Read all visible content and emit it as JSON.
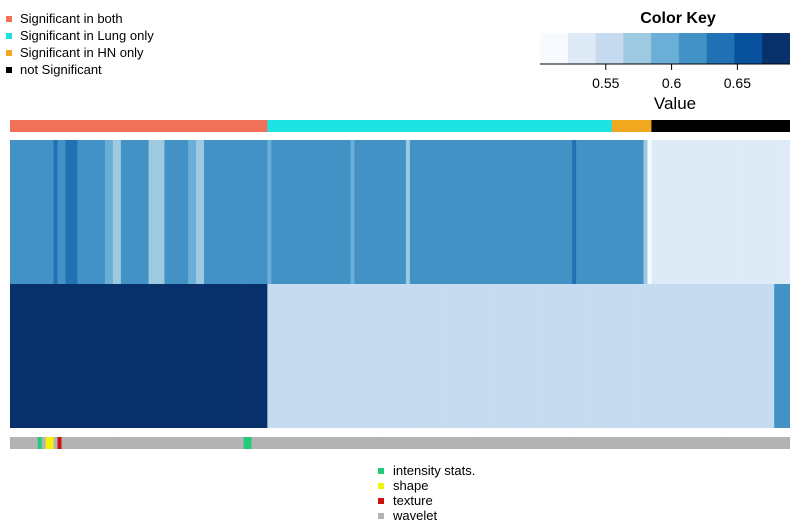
{
  "chart_data": {
    "type": "heatmap",
    "rows": 2,
    "n_columns": 197,
    "color_key": {
      "title": "Color Key",
      "xlabel": "Value",
      "ticks": [
        0.55,
        0.6,
        0.65
      ],
      "range": [
        0.5,
        0.69
      ],
      "colors": [
        "#f7fbff",
        "#deebf7",
        "#c6dbef",
        "#9ecae1",
        "#6baed6",
        "#4292c6",
        "#2171b5",
        "#08519c",
        "#08306b"
      ]
    },
    "top_legend": [
      {
        "label": "Significant in both",
        "color": "#f07158"
      },
      {
        "label": "Significant in Lung only",
        "color": "#1ee3e3"
      },
      {
        "label": "Significant in HN only",
        "color": "#f0a91e"
      },
      {
        "label": "not Significant",
        "color": "#000000"
      }
    ],
    "significance_groups": [
      {
        "group": "Significant in both",
        "columns": 65
      },
      {
        "group": "Significant in Lung only",
        "columns": 87
      },
      {
        "group": "Significant in HN only",
        "columns": 10
      },
      {
        "group": "not Significant",
        "columns": 35
      }
    ],
    "bottom_legend": [
      {
        "label": "intensity stats.",
        "color": "#22cc77"
      },
      {
        "label": "shape",
        "color": "#f2f20a"
      },
      {
        "label": "texture",
        "color": "#cc1111"
      },
      {
        "label": "wavelet",
        "color": "#b3b3b3"
      }
    ],
    "row_levels": [
      "55555555555655666555555544335555555333355555544335555555555555555455555555555555555555455555555555553555555555555555555555555555555555555555556555555555555555553011111111111111111111111111111111111",
      "88888888888888888888888888888888888888888888888888888888888888888222222222222222222222222222222222222222222222222222222222222222222222222222222222222222222222222222222222222222222222222222222225555555"
    ],
    "feature_types": "wwwwwwwiwsswtwwwwwwwwwwwwwwwwwwwwwwwwwwwwwwwwwwwwwwwwwwwwwwiiwwwwwwwwwwwwwwwwwwwwwwwwwwwwwwwwwwwwwwwwwwwwwwwwwwwwwwwwwwwwwwwwwwwwwwwwwwwwwwwwwwwwwwwwwwwwwwwwwwwwwwwwwwwwwwwwwwwwwwwwwwwwwwwwwwwww"
  }
}
